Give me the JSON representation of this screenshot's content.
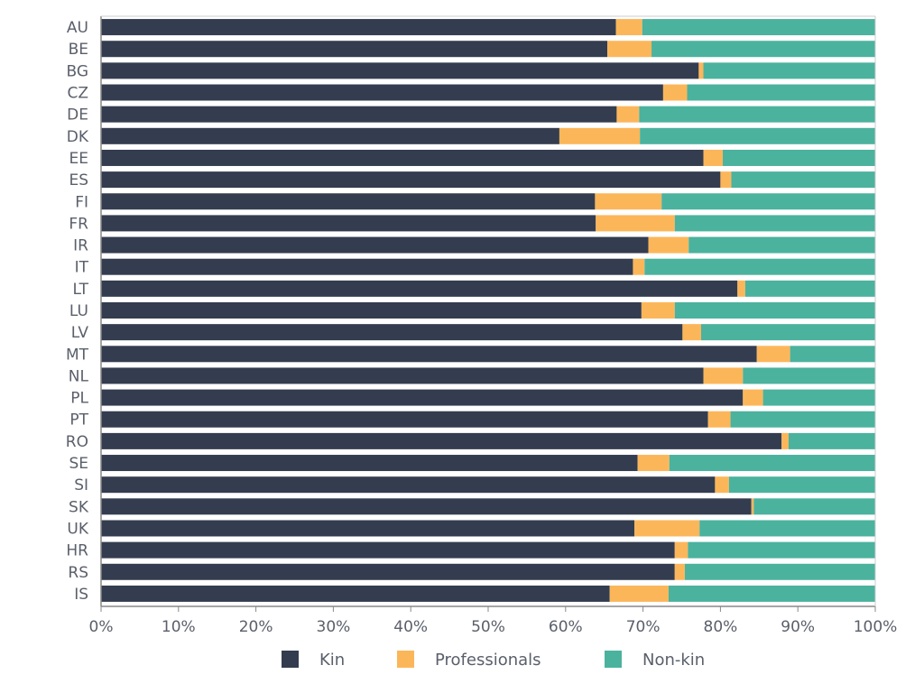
{
  "chart_data": {
    "type": "bar",
    "orientation": "horizontal",
    "stacked": true,
    "categories": [
      "AU",
      "BE",
      "BG",
      "CZ",
      "DE",
      "DK",
      "EE",
      "ES",
      "FI",
      "FR",
      "IR",
      "IT",
      "LT",
      "LU",
      "LV",
      "MT",
      "NL",
      "PL",
      "PT",
      "RO",
      "SE",
      "SI",
      "SK",
      "UK",
      "HR",
      "RS",
      "IS"
    ],
    "series": [
      {
        "name": "Kin",
        "color": "#343d4f",
        "values": [
          66.5,
          65.4,
          77.2,
          72.6,
          66.6,
          59.2,
          77.8,
          80.0,
          63.8,
          63.9,
          70.7,
          68.7,
          82.2,
          69.8,
          75.1,
          84.7,
          77.8,
          82.9,
          78.4,
          87.9,
          69.3,
          79.3,
          84.0,
          68.9,
          74.1,
          74.1,
          65.7
        ]
      },
      {
        "name": "Professionals",
        "color": "#fcb65a",
        "values": [
          3.4,
          5.7,
          0.6,
          3.1,
          2.9,
          10.4,
          2.5,
          1.4,
          8.6,
          10.2,
          5.2,
          1.5,
          1.0,
          4.3,
          2.4,
          4.3,
          5.1,
          2.6,
          2.9,
          0.9,
          4.1,
          1.8,
          0.3,
          8.4,
          1.7,
          1.3,
          7.6
        ]
      },
      {
        "name": "Non-kin",
        "color": "#4bb29e",
        "values": [
          30.1,
          28.9,
          22.2,
          24.3,
          30.5,
          30.4,
          19.7,
          18.6,
          27.6,
          25.9,
          24.1,
          29.8,
          16.8,
          25.9,
          22.5,
          11.0,
          17.1,
          14.5,
          18.7,
          11.2,
          26.6,
          18.9,
          15.7,
          22.7,
          24.2,
          24.6,
          26.7
        ]
      }
    ],
    "xlim": [
      0,
      100
    ],
    "xticks": [
      "0%",
      "10%",
      "20%",
      "30%",
      "40%",
      "50%",
      "60%",
      "70%",
      "80%",
      "90%",
      "100%"
    ],
    "title": "",
    "xlabel": "",
    "ylabel": "",
    "grid": false,
    "legend_position": "bottom",
    "axis_color": "#888888",
    "text_color": "#5a5f6b"
  }
}
